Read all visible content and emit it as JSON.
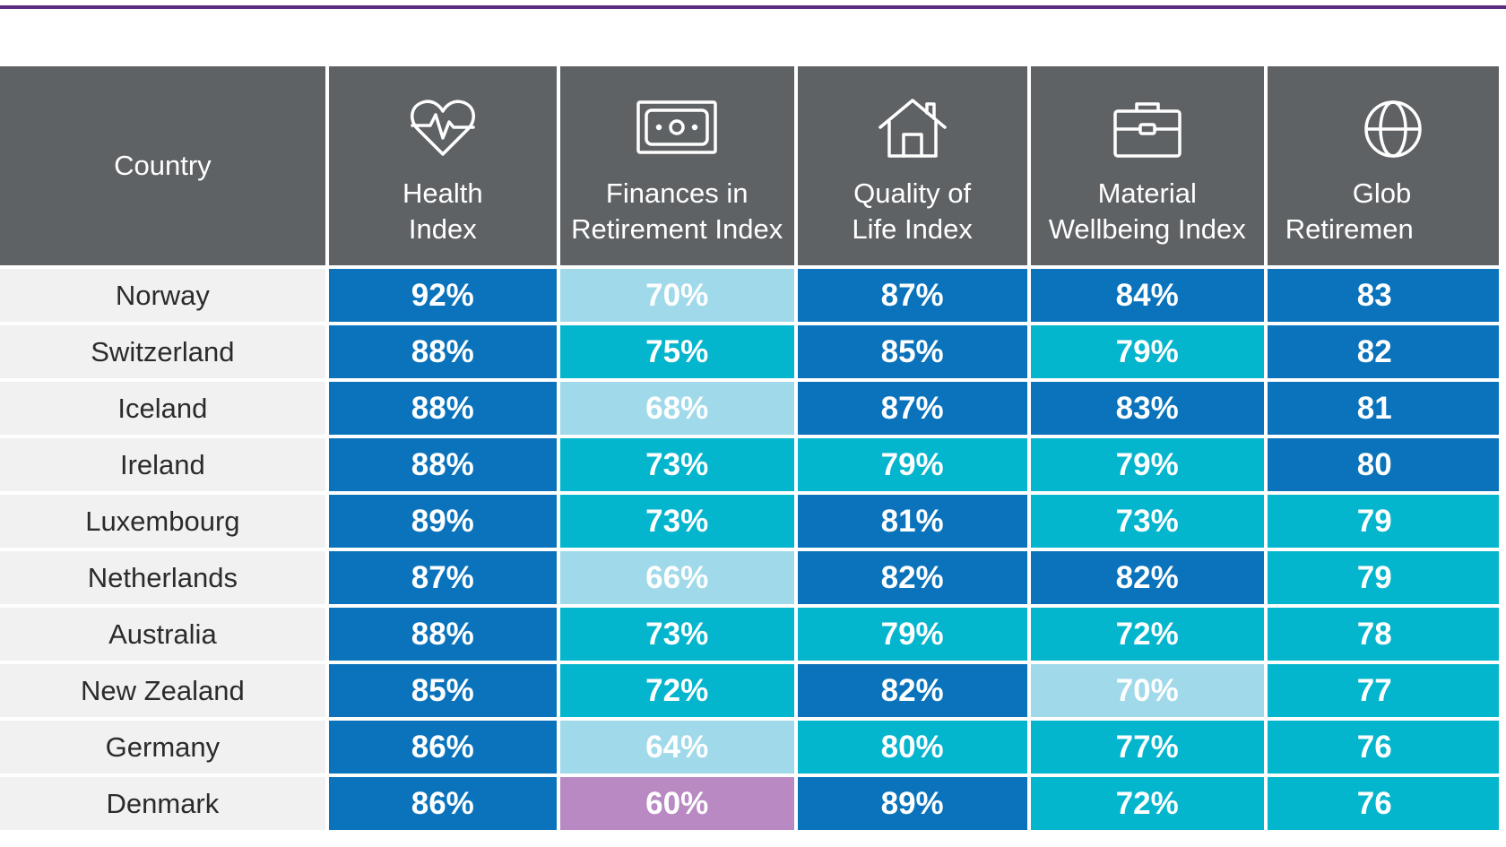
{
  "chart_data": {
    "type": "table",
    "columns": [
      {
        "key": "country",
        "label": "Country",
        "icon": null
      },
      {
        "key": "health",
        "label": "Health Index",
        "label_lines": [
          "Health",
          "Index"
        ],
        "icon": "heart-pulse-icon"
      },
      {
        "key": "finances",
        "label": "Finances in Retirement Index",
        "label_lines": [
          "Finances in",
          "Retirement Index"
        ],
        "icon": "banknote-icon"
      },
      {
        "key": "quality",
        "label": "Quality of Life Index",
        "label_lines": [
          "Quality of",
          "Life Index"
        ],
        "icon": "house-icon"
      },
      {
        "key": "material",
        "label": "Material Wellbeing Index",
        "label_lines": [
          "Material",
          "Wellbeing Index"
        ],
        "icon": "briefcase-icon"
      },
      {
        "key": "global",
        "label": "Glob Retiremen",
        "label_lines": [
          "Glob",
          "Retiremen"
        ],
        "icon": "globe-icon"
      }
    ],
    "rows": [
      {
        "country": "Norway",
        "health": "92%",
        "finances": "70%",
        "quality": "87%",
        "material": "84%",
        "global": "83"
      },
      {
        "country": "Switzerland",
        "health": "88%",
        "finances": "75%",
        "quality": "85%",
        "material": "79%",
        "global": "82"
      },
      {
        "country": "Iceland",
        "health": "88%",
        "finances": "68%",
        "quality": "87%",
        "material": "83%",
        "global": "81"
      },
      {
        "country": "Ireland",
        "health": "88%",
        "finances": "73%",
        "quality": "79%",
        "material": "79%",
        "global": "80"
      },
      {
        "country": "Luxembourg",
        "health": "89%",
        "finances": "73%",
        "quality": "81%",
        "material": "73%",
        "global": "79"
      },
      {
        "country": "Netherlands",
        "health": "87%",
        "finances": "66%",
        "quality": "82%",
        "material": "82%",
        "global": "79"
      },
      {
        "country": "Australia",
        "health": "88%",
        "finances": "73%",
        "quality": "79%",
        "material": "72%",
        "global": "78"
      },
      {
        "country": "New Zealand",
        "health": "85%",
        "finances": "72%",
        "quality": "82%",
        "material": "70%",
        "global": "77"
      },
      {
        "country": "Germany",
        "health": "86%",
        "finances": "64%",
        "quality": "80%",
        "material": "77%",
        "global": "76"
      },
      {
        "country": "Denmark",
        "health": "86%",
        "finances": "60%",
        "quality": "89%",
        "material": "72%",
        "global": "76"
      }
    ],
    "cell_colors": [
      [
        "dark",
        "light",
        "dark",
        "dark",
        "dark"
      ],
      [
        "dark",
        "mid",
        "dark",
        "mid",
        "dark"
      ],
      [
        "dark",
        "light",
        "dark",
        "dark",
        "dark"
      ],
      [
        "dark",
        "mid",
        "mid",
        "mid",
        "dark"
      ],
      [
        "dark",
        "mid",
        "dark",
        "mid",
        "mid"
      ],
      [
        "dark",
        "light",
        "dark",
        "dark",
        "mid"
      ],
      [
        "dark",
        "mid",
        "mid",
        "mid",
        "mid"
      ],
      [
        "dark",
        "mid",
        "dark",
        "light",
        "mid"
      ],
      [
        "dark",
        "light",
        "mid",
        "mid",
        "mid"
      ],
      [
        "dark",
        "purple",
        "dark",
        "mid",
        "mid"
      ]
    ],
    "colors": {
      "header_bg": "#5f6265",
      "dark": "#0a73bb",
      "mid": "#03b5cd",
      "light": "#9fd9ea",
      "purple": "#b889c2",
      "country_bg": "#f1f1f1",
      "top_rule": "#5b2d82"
    }
  }
}
